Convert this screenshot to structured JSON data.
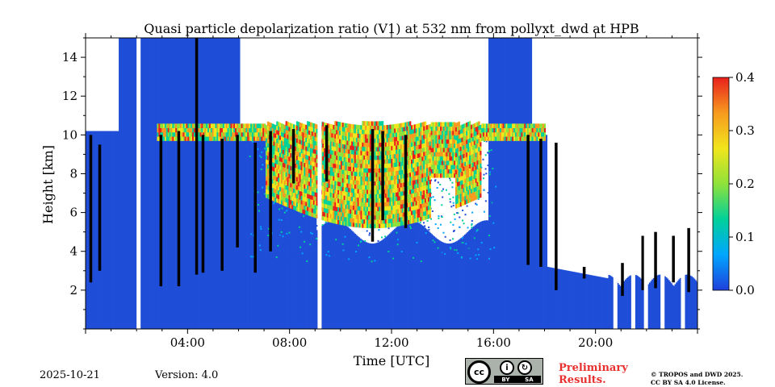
{
  "chart_data": {
    "type": "heatmap",
    "title": "Quasi particle depolarization ratio (V1) at 532 nm from pollyxt_dwd at HPB",
    "xlabel": "Time [UTC]",
    "ylabel": "Height [km]",
    "xlim": [
      0,
      24
    ],
    "ylim": [
      0,
      15
    ],
    "x_ticks": [
      4,
      8,
      12,
      16,
      20
    ],
    "x_tick_labels": [
      "04:00",
      "08:00",
      "12:00",
      "16:00",
      "20:00"
    ],
    "y_ticks": [
      2,
      4,
      6,
      8,
      10,
      12,
      14
    ],
    "y_tick_labels": [
      "2",
      "4",
      "6",
      "8",
      "10",
      "12",
      "14"
    ],
    "colorbar": {
      "min": 0.0,
      "max": 0.4,
      "ticks": [
        "0.0",
        "0.1",
        "0.2",
        "0.3",
        "0.4"
      ],
      "colors": [
        "#1f3fdb",
        "#00a6ff",
        "#00d09a",
        "#8fe23a",
        "#f1e51c",
        "#f79a1f",
        "#e8201c"
      ]
    },
    "background_color": "#1f4ed8",
    "cirrus_layer_km": [
      9.5,
      10.5
    ],
    "gaps_utc": [
      2.0,
      9.1,
      20.7,
      21.4,
      21.9,
      22.55,
      23.35
    ]
  },
  "footer": {
    "date": "2025-10-21",
    "version": "Version: 4.0",
    "preliminary_line1": "Preliminary",
    "preliminary_line2": "Results.",
    "copyright_line1": "© TROPOS and DWD 2025.",
    "copyright_line2": "CC BY SA 4.0 License.",
    "cc_logo": "cc",
    "cc_by": "BY",
    "cc_sa": "SA"
  }
}
